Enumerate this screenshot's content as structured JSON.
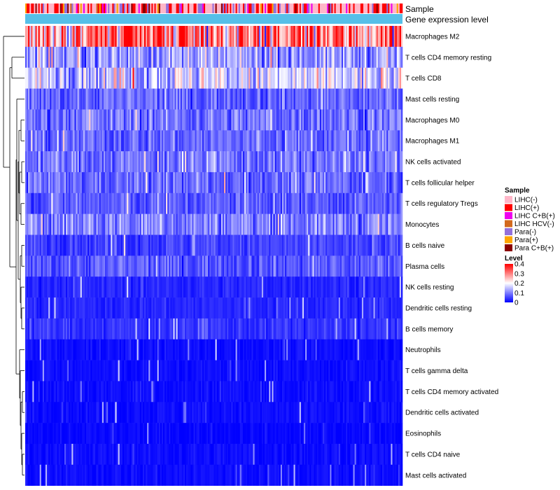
{
  "chart_data": {
    "type": "heatmap",
    "title": "",
    "annotation_tracks": [
      {
        "name": "Sample",
        "type": "categorical"
      },
      {
        "name": "Gene expression level",
        "type": "constant",
        "color": "#56bfe8"
      }
    ],
    "rows": [
      {
        "label": "Macrophages M2",
        "mean": 0.3
      },
      {
        "label": "T cells CD4 memory resting",
        "mean": 0.12
      },
      {
        "label": "T cells CD8",
        "mean": 0.16
      },
      {
        "label": "Mast cells resting",
        "mean": 0.08
      },
      {
        "label": "Macrophages M0",
        "mean": 0.09
      },
      {
        "label": "Macrophages M1",
        "mean": 0.08
      },
      {
        "label": "NK cells activated",
        "mean": 0.09
      },
      {
        "label": "T cells follicular helper",
        "mean": 0.08
      },
      {
        "label": "T cells regulatory  Tregs",
        "mean": 0.07
      },
      {
        "label": "Monocytes",
        "mean": 0.1
      },
      {
        "label": "B cells naive",
        "mean": 0.05
      },
      {
        "label": "Plasma cells",
        "mean": 0.07
      },
      {
        "label": "NK cells resting",
        "mean": 0.03
      },
      {
        "label": "Dendritic cells resting",
        "mean": 0.03
      },
      {
        "label": "B cells memory",
        "mean": 0.04
      },
      {
        "label": "Neutrophils",
        "mean": 0.01
      },
      {
        "label": "T cells gamma delta",
        "mean": 0.01
      },
      {
        "label": "T cells CD4 memory activated",
        "mean": 0.01
      },
      {
        "label": "Dendritic cells activated",
        "mean": 0.01
      },
      {
        "label": "Eosinophils",
        "mean": 0.005
      },
      {
        "label": "T cells CD4 naive",
        "mean": 0.01
      },
      {
        "label": "Mast cells activated",
        "mean": 0.01
      }
    ],
    "n_columns": 260,
    "sample_legend": {
      "title": "Sample",
      "entries": [
        {
          "label": "LIHC(-)",
          "color": "#ffb6c8"
        },
        {
          "label": "LIHC(+)",
          "color": "#ff0000"
        },
        {
          "label": "LIHC C+B(+)",
          "color": "#ee00ee"
        },
        {
          "label": "LIHC HCV(-)",
          "color": "#d2691e"
        },
        {
          "label": "Para(-)",
          "color": "#9370db"
        },
        {
          "label": "Para(+)",
          "color": "#ffa500"
        },
        {
          "label": "Para C+B(+)",
          "color": "#8b0000"
        }
      ]
    },
    "level_legend": {
      "title": "Level",
      "min": 0,
      "max": 0.4,
      "ticks": [
        "0.4",
        "0.3",
        "0.2",
        "0.1",
        "0"
      ],
      "colors": [
        "#0000ff",
        "#ffffff",
        "#ff0000"
      ]
    }
  }
}
